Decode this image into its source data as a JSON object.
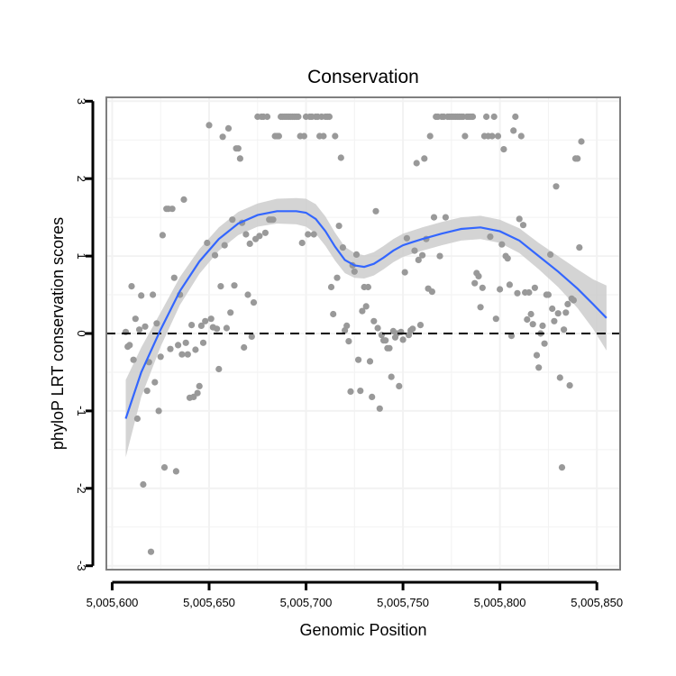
{
  "chart_data": {
    "type": "scatter",
    "title": "Conservation",
    "xlabel": "Genomic Position",
    "ylabel": "phyloP LRT conservation scores",
    "xlim": [
      5005597,
      5005862
    ],
    "ylim": [
      -3.05,
      3.05
    ],
    "x_ticks": [
      5005600,
      5005650,
      5005700,
      5005750,
      5005800,
      5005850
    ],
    "x_tick_labels": [
      "5,005,600",
      "5,005,650",
      "5,005,700",
      "5,005,750",
      "5,005,800",
      "5,005,850"
    ],
    "y_ticks": [
      -3,
      -2,
      -1,
      0,
      1,
      2,
      3
    ],
    "y_tick_labels": [
      "-3",
      "-2",
      "-1",
      "0",
      "1",
      "2",
      "3"
    ],
    "grid": true,
    "hline": {
      "y": 0,
      "style": "dashed"
    },
    "colors": {
      "points": "#999999",
      "smooth": "#3366ff",
      "ribbon": "#cccccc",
      "panel_border": "#7f7f7f",
      "grid": "#f2f2f2"
    },
    "points": [
      [
        5005607,
        0.02
      ],
      [
        5005608,
        -0.17
      ],
      [
        5005609,
        -0.15
      ],
      [
        5005610,
        0.61
      ],
      [
        5005611,
        -0.34
      ],
      [
        5005612,
        0.19
      ],
      [
        5005613,
        -1.1
      ],
      [
        5005614,
        0.05
      ],
      [
        5005615,
        0.49
      ],
      [
        5005616,
        -1.95
      ],
      [
        5005617,
        0.09
      ],
      [
        5005618,
        -0.74
      ],
      [
        5005619,
        -0.37
      ],
      [
        5005620,
        -2.82
      ],
      [
        5005621,
        0.5
      ],
      [
        5005622,
        -0.63
      ],
      [
        5005623,
        0.13
      ],
      [
        5005624,
        -1.0
      ],
      [
        5005625,
        -0.3
      ],
      [
        5005626,
        1.27
      ],
      [
        5005627,
        -1.73
      ],
      [
        5005628,
        1.61
      ],
      [
        5005629,
        1.61
      ],
      [
        5005630,
        -0.2
      ],
      [
        5005631,
        1.61
      ],
      [
        5005632,
        0.72
      ],
      [
        5005633,
        -1.78
      ],
      [
        5005634,
        -0.15
      ],
      [
        5005635,
        0.5
      ],
      [
        5005636,
        -0.27
      ],
      [
        5005637,
        1.73
      ],
      [
        5005638,
        -0.12
      ],
      [
        5005639,
        -0.27
      ],
      [
        5005640,
        -0.83
      ],
      [
        5005641,
        0.11
      ],
      [
        5005642,
        -0.82
      ],
      [
        5005643,
        -0.21
      ],
      [
        5005644,
        -0.77
      ],
      [
        5005645,
        -0.68
      ],
      [
        5005646,
        0.1
      ],
      [
        5005647,
        -0.12
      ],
      [
        5005648,
        0.16
      ],
      [
        5005649,
        1.17
      ],
      [
        5005650,
        2.69
      ],
      [
        5005651,
        0.19
      ],
      [
        5005652,
        0.08
      ],
      [
        5005653,
        1.01
      ],
      [
        5005654,
        0.06
      ],
      [
        5005655,
        -0.46
      ],
      [
        5005656,
        0.61
      ],
      [
        5005657,
        2.54
      ],
      [
        5005658,
        1.14
      ],
      [
        5005659,
        0.07
      ],
      [
        5005660,
        2.65
      ],
      [
        5005661,
        0.27
      ],
      [
        5005662,
        1.47
      ],
      [
        5005663,
        0.62
      ],
      [
        5005664,
        2.39
      ],
      [
        5005665,
        2.39
      ],
      [
        5005666,
        2.26
      ],
      [
        5005667,
        1.43
      ],
      [
        5005668,
        -0.18
      ],
      [
        5005669,
        1.28
      ],
      [
        5005670,
        0.5
      ],
      [
        5005671,
        1.16
      ],
      [
        5005672,
        -0.04
      ],
      [
        5005673,
        0.4
      ],
      [
        5005674,
        1.22
      ],
      [
        5005675,
        2.8
      ],
      [
        5005676,
        1.26
      ],
      [
        5005677,
        2.8
      ],
      [
        5005678,
        2.8
      ],
      [
        5005679,
        1.3
      ],
      [
        5005680,
        2.8
      ],
      [
        5005681,
        1.47
      ],
      [
        5005682,
        1.47
      ],
      [
        5005683,
        1.47
      ],
      [
        5005684,
        2.55
      ],
      [
        5005685,
        2.55
      ],
      [
        5005686,
        2.55
      ],
      [
        5005687,
        2.8
      ],
      [
        5005688,
        2.8
      ],
      [
        5005689,
        2.8
      ],
      [
        5005690,
        2.8
      ],
      [
        5005691,
        2.8
      ],
      [
        5005692,
        2.8
      ],
      [
        5005693,
        2.8
      ],
      [
        5005694,
        2.8
      ],
      [
        5005695,
        2.8
      ],
      [
        5005696,
        2.8
      ],
      [
        5005697,
        2.55
      ],
      [
        5005698,
        1.17
      ],
      [
        5005699,
        2.55
      ],
      [
        5005700,
        2.8
      ],
      [
        5005701,
        1.28
      ],
      [
        5005702,
        2.8
      ],
      [
        5005703,
        2.8
      ],
      [
        5005704,
        1.28
      ],
      [
        5005705,
        2.8
      ],
      [
        5005706,
        2.8
      ],
      [
        5005707,
        2.55
      ],
      [
        5005708,
        2.8
      ],
      [
        5005709,
        2.55
      ],
      [
        5005710,
        2.8
      ],
      [
        5005711,
        2.8
      ],
      [
        5005712,
        2.8
      ],
      [
        5005713,
        0.6
      ],
      [
        5005714,
        0.25
      ],
      [
        5005715,
        2.55
      ],
      [
        5005716,
        0.72
      ],
      [
        5005717,
        1.39
      ],
      [
        5005718,
        2.27
      ],
      [
        5005719,
        1.11
      ],
      [
        5005720,
        0.04
      ],
      [
        5005721,
        0.1
      ],
      [
        5005722,
        -0.1
      ],
      [
        5005723,
        -0.75
      ],
      [
        5005724,
        0.88
      ],
      [
        5005725,
        0.8
      ],
      [
        5005726,
        1.02
      ],
      [
        5005727,
        -0.34
      ],
      [
        5005728,
        -0.74
      ],
      [
        5005729,
        0.29
      ],
      [
        5005730,
        0.6
      ],
      [
        5005731,
        0.35
      ],
      [
        5005732,
        0.6
      ],
      [
        5005733,
        -0.36
      ],
      [
        5005734,
        -0.82
      ],
      [
        5005735,
        0.16
      ],
      [
        5005736,
        1.58
      ],
      [
        5005737,
        0.07
      ],
      [
        5005738,
        -0.97
      ],
      [
        5005739,
        -0.02
      ],
      [
        5005740,
        -0.09
      ],
      [
        5005741,
        -0.09
      ],
      [
        5005742,
        -0.19
      ],
      [
        5005743,
        -0.19
      ],
      [
        5005744,
        -0.56
      ],
      [
        5005745,
        0.03
      ],
      [
        5005746,
        -0.05
      ],
      [
        5005747,
        0.0
      ],
      [
        5005748,
        -0.68
      ],
      [
        5005749,
        0.02
      ],
      [
        5005750,
        -0.08
      ],
      [
        5005751,
        0.79
      ],
      [
        5005752,
        1.23
      ],
      [
        5005753,
        -0.02
      ],
      [
        5005754,
        0.04
      ],
      [
        5005755,
        0.06
      ],
      [
        5005756,
        1.07
      ],
      [
        5005757,
        2.2
      ],
      [
        5005758,
        0.95
      ],
      [
        5005759,
        0.11
      ],
      [
        5005760,
        1.01
      ],
      [
        5005761,
        2.26
      ],
      [
        5005762,
        1.22
      ],
      [
        5005763,
        0.58
      ],
      [
        5005764,
        2.55
      ],
      [
        5005765,
        0.54
      ],
      [
        5005766,
        1.5
      ],
      [
        5005767,
        2.8
      ],
      [
        5005768,
        2.8
      ],
      [
        5005769,
        1.0
      ],
      [
        5005770,
        2.8
      ],
      [
        5005771,
        2.8
      ],
      [
        5005772,
        1.5
      ],
      [
        5005773,
        2.8
      ],
      [
        5005774,
        2.8
      ],
      [
        5005775,
        2.8
      ],
      [
        5005776,
        2.8
      ],
      [
        5005777,
        2.8
      ],
      [
        5005778,
        2.8
      ],
      [
        5005779,
        2.8
      ],
      [
        5005780,
        2.8
      ],
      [
        5005781,
        2.8
      ],
      [
        5005782,
        2.55
      ],
      [
        5005783,
        2.8
      ],
      [
        5005784,
        2.8
      ],
      [
        5005785,
        2.8
      ],
      [
        5005786,
        2.8
      ],
      [
        5005787,
        0.65
      ],
      [
        5005788,
        0.78
      ],
      [
        5005789,
        0.74
      ],
      [
        5005790,
        0.34
      ],
      [
        5005791,
        0.59
      ],
      [
        5005792,
        2.55
      ],
      [
        5005793,
        2.8
      ],
      [
        5005794,
        2.55
      ],
      [
        5005795,
        1.25
      ],
      [
        5005796,
        2.55
      ],
      [
        5005797,
        2.8
      ],
      [
        5005798,
        0.19
      ],
      [
        5005799,
        2.55
      ],
      [
        5005800,
        0.57
      ],
      [
        5005801,
        1.15
      ],
      [
        5005802,
        2.38
      ],
      [
        5005803,
        1.0
      ],
      [
        5005804,
        0.97
      ],
      [
        5005805,
        0.63
      ],
      [
        5005806,
        -0.03
      ],
      [
        5005807,
        2.62
      ],
      [
        5005808,
        2.8
      ],
      [
        5005809,
        0.52
      ],
      [
        5005810,
        1.48
      ],
      [
        5005811,
        2.55
      ],
      [
        5005812,
        1.4
      ],
      [
        5005813,
        0.53
      ],
      [
        5005814,
        0.18
      ],
      [
        5005815,
        0.53
      ],
      [
        5005816,
        0.25
      ],
      [
        5005817,
        0.12
      ],
      [
        5005818,
        0.59
      ],
      [
        5005819,
        -0.28
      ],
      [
        5005820,
        -0.44
      ],
      [
        5005821,
        0.0
      ],
      [
        5005822,
        0.1
      ],
      [
        5005823,
        -0.13
      ],
      [
        5005824,
        0.5
      ],
      [
        5005825,
        0.5
      ],
      [
        5005826,
        1.02
      ],
      [
        5005827,
        0.32
      ],
      [
        5005828,
        0.16
      ],
      [
        5005829,
        1.9
      ],
      [
        5005830,
        0.26
      ],
      [
        5005831,
        -0.57
      ],
      [
        5005832,
        -1.73
      ],
      [
        5005833,
        0.05
      ],
      [
        5005834,
        0.27
      ],
      [
        5005835,
        0.38
      ],
      [
        5005836,
        -0.67
      ],
      [
        5005837,
        0.45
      ],
      [
        5005838,
        0.43
      ],
      [
        5005839,
        2.26
      ],
      [
        5005840,
        2.26
      ],
      [
        5005841,
        1.11
      ],
      [
        5005842,
        2.48
      ]
    ],
    "smooth": [
      [
        5005607,
        -1.1
      ],
      [
        5005615,
        -0.5
      ],
      [
        5005625,
        0.05
      ],
      [
        5005635,
        0.55
      ],
      [
        5005645,
        0.93
      ],
      [
        5005655,
        1.22
      ],
      [
        5005665,
        1.42
      ],
      [
        5005675,
        1.53
      ],
      [
        5005685,
        1.58
      ],
      [
        5005695,
        1.58
      ],
      [
        5005700,
        1.56
      ],
      [
        5005705,
        1.48
      ],
      [
        5005710,
        1.32
      ],
      [
        5005715,
        1.12
      ],
      [
        5005720,
        0.95
      ],
      [
        5005725,
        0.88
      ],
      [
        5005730,
        0.86
      ],
      [
        5005735,
        0.9
      ],
      [
        5005740,
        0.98
      ],
      [
        5005745,
        1.07
      ],
      [
        5005750,
        1.14
      ],
      [
        5005755,
        1.18
      ],
      [
        5005760,
        1.22
      ],
      [
        5005770,
        1.29
      ],
      [
        5005780,
        1.35
      ],
      [
        5005790,
        1.37
      ],
      [
        5005800,
        1.32
      ],
      [
        5005810,
        1.2
      ],
      [
        5005820,
        1.0
      ],
      [
        5005830,
        0.8
      ],
      [
        5005840,
        0.58
      ],
      [
        5005848,
        0.38
      ],
      [
        5005855,
        0.2
      ]
    ],
    "ribbon_halfwidth": [
      0.5,
      0.32,
      0.22,
      0.18,
      0.16,
      0.15,
      0.15,
      0.15,
      0.16,
      0.17,
      0.18,
      0.19,
      0.19,
      0.18,
      0.17,
      0.16,
      0.15,
      0.15,
      0.15,
      0.15,
      0.15,
      0.15,
      0.15,
      0.15,
      0.15,
      0.15,
      0.15,
      0.16,
      0.17,
      0.2,
      0.25,
      0.32,
      0.42
    ]
  }
}
